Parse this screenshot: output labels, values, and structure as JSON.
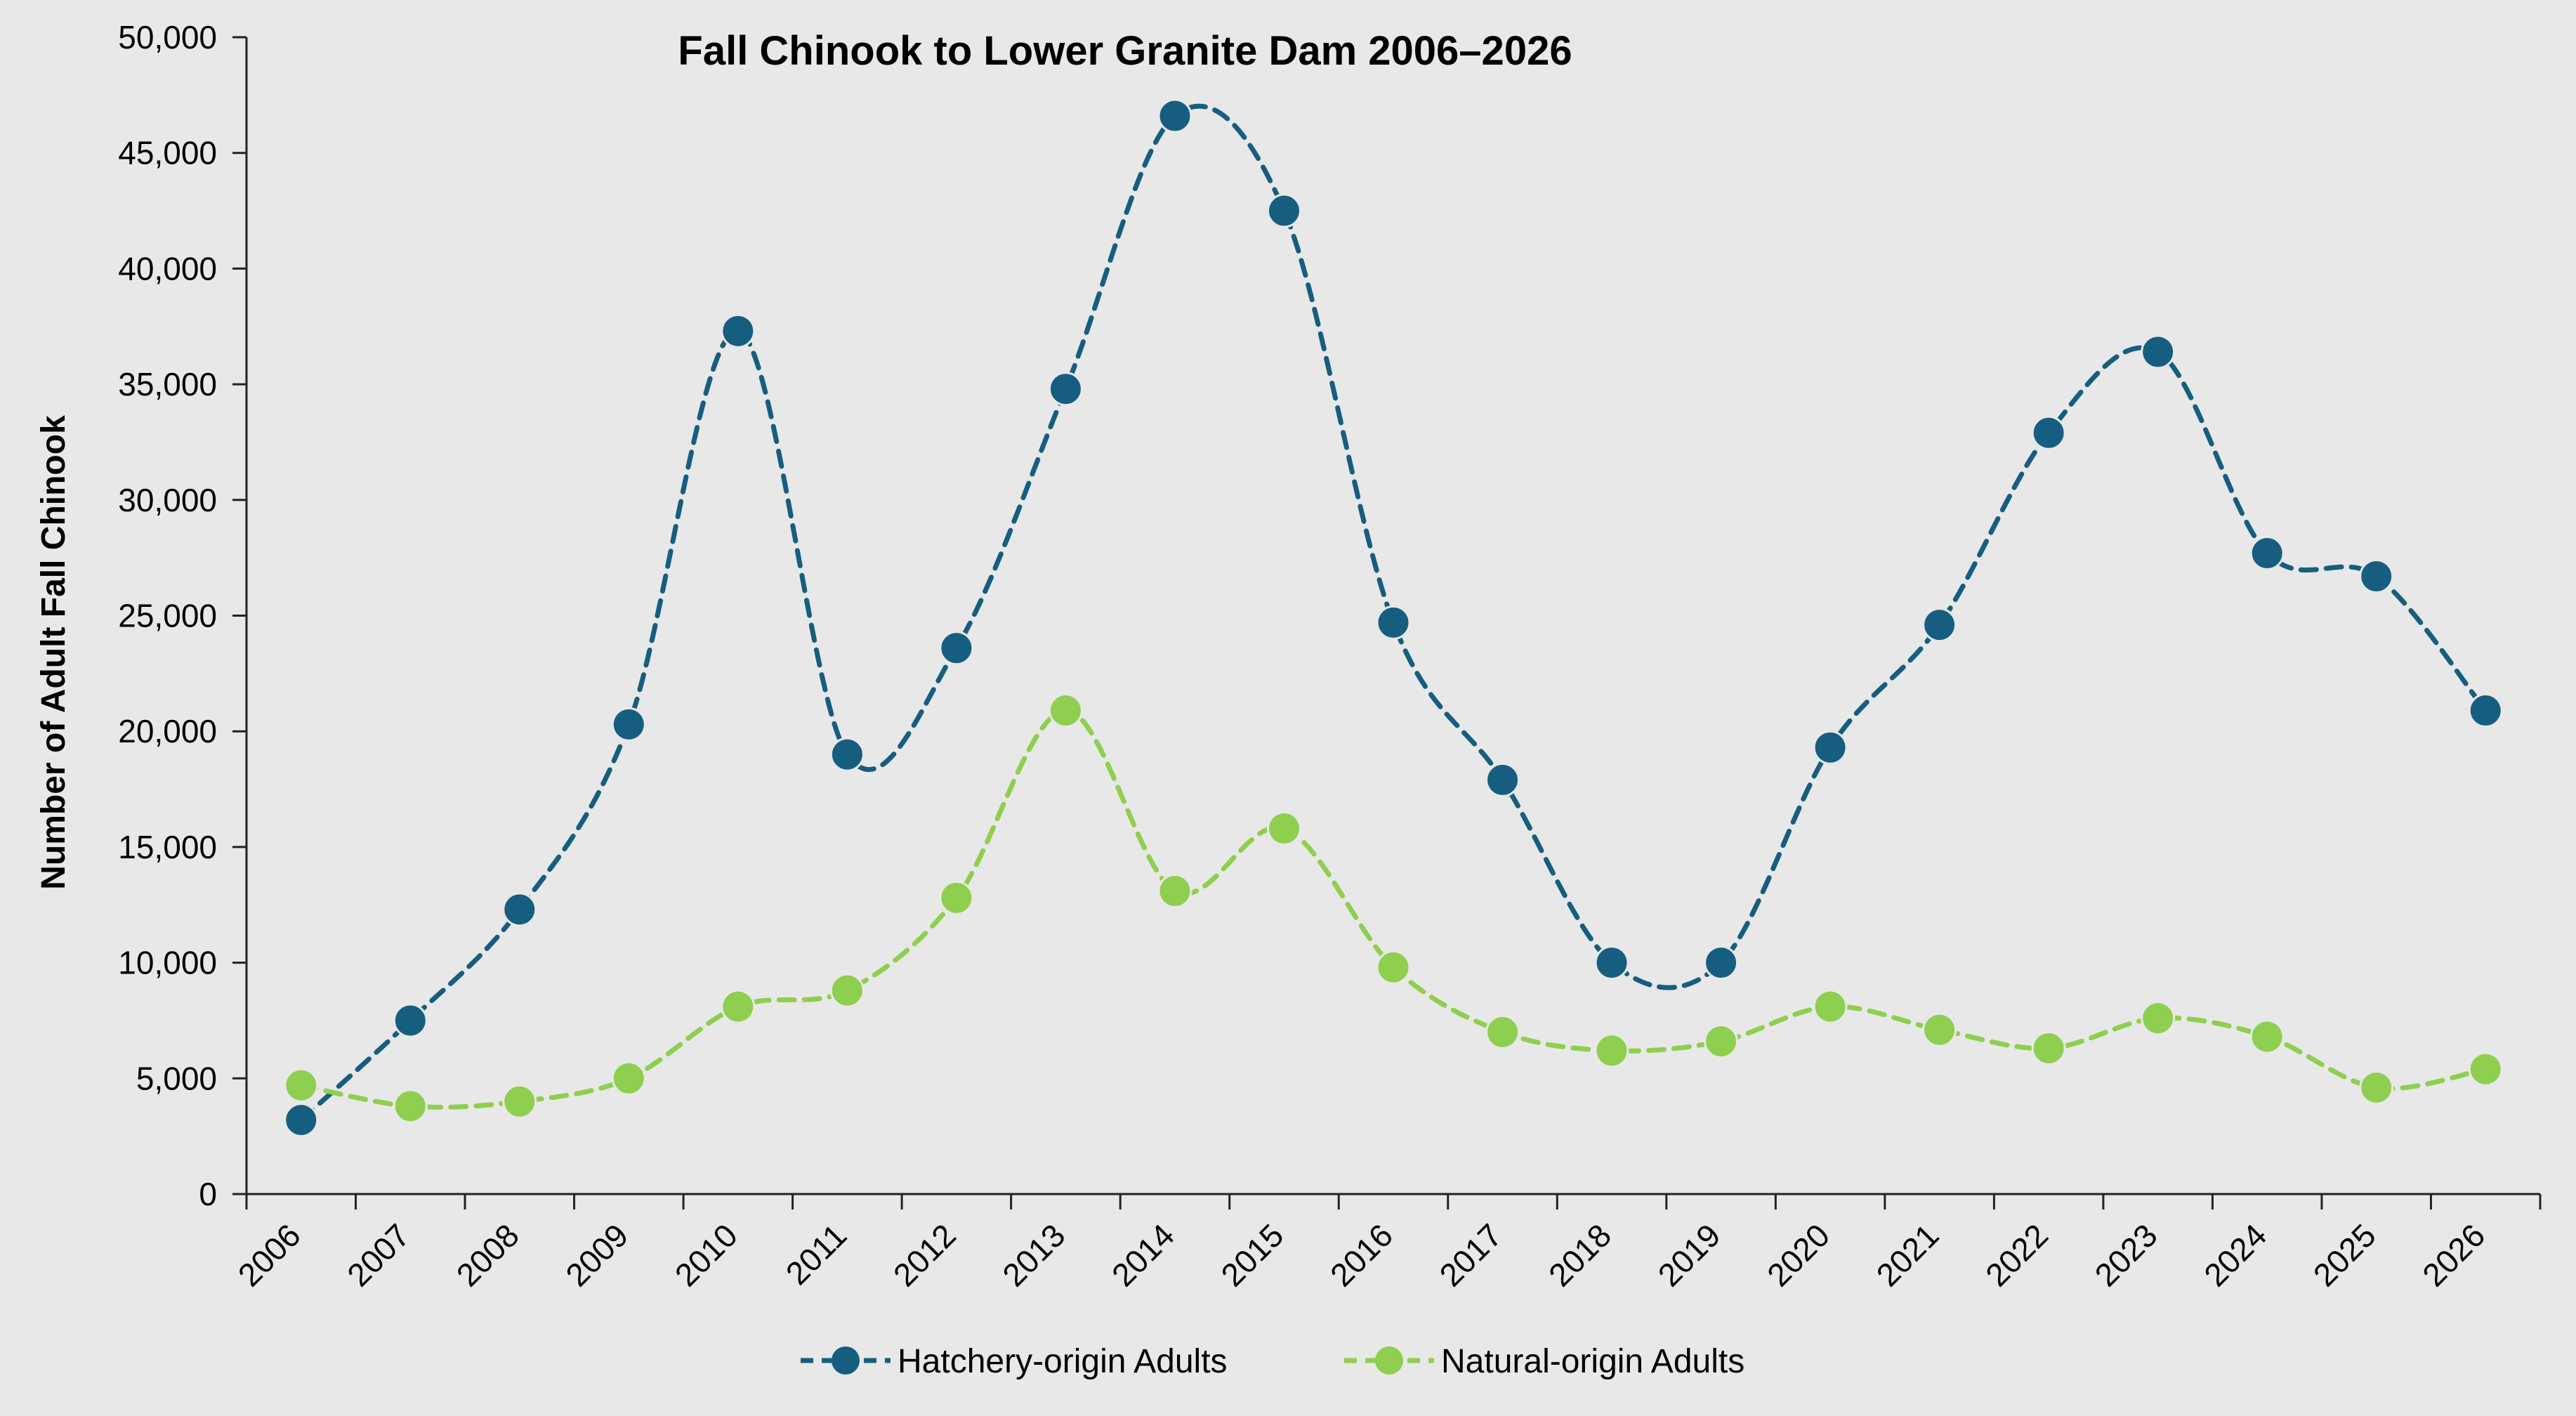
{
  "chart_data": {
    "type": "line",
    "title": "Fall Chinook to Lower Granite Dam 2006–2026",
    "xlabel": "",
    "ylabel": "Number of Adult Fall Chinook",
    "categories": [
      "2006",
      "2007",
      "2008",
      "2009",
      "2010",
      "2011",
      "2012",
      "2013",
      "2014",
      "2015",
      "2016",
      "2017",
      "2018",
      "2019",
      "2020",
      "2021",
      "2022",
      "2023",
      "2024",
      "2025",
      "2026"
    ],
    "ylim": [
      0,
      50000
    ],
    "yticks": [
      0,
      5000,
      10000,
      15000,
      20000,
      25000,
      30000,
      35000,
      40000,
      45000,
      50000
    ],
    "ytick_labels": [
      "0",
      "5,000",
      "10,000",
      "15,000",
      "20,000",
      "25,000",
      "30,000",
      "35,000",
      "40,000",
      "45,000",
      "50,000"
    ],
    "grid": false,
    "legend_position": "bottom",
    "smooth": true,
    "line_style": "dashed",
    "series": [
      {
        "name": "Hatchery-origin Adults",
        "color": "#165e7f",
        "values": [
          3200,
          7500,
          12300,
          20300,
          37300,
          19000,
          23600,
          34800,
          46600,
          42500,
          24700,
          17900,
          10000,
          10000,
          19300,
          24600,
          32900,
          36400,
          27700,
          26700,
          20900
        ]
      },
      {
        "name": "Natural-origin Adults",
        "color": "#8fcf4f",
        "values": [
          4700,
          3800,
          4000,
          5000,
          8100,
          8800,
          12800,
          20900,
          13100,
          15800,
          9800,
          7000,
          6200,
          6600,
          8100,
          7100,
          6300,
          7600,
          6800,
          4600,
          5400
        ]
      }
    ]
  }
}
